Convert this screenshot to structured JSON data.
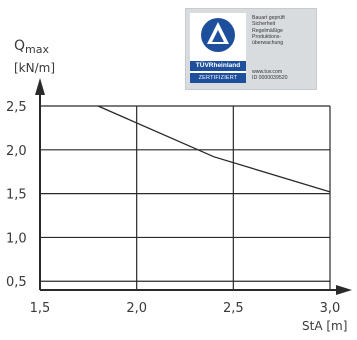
{
  "chart_data": {
    "type": "line",
    "ylabel_main": "Q",
    "ylabel_sub": "max",
    "yunit": "[kN/m]",
    "xlabel": "StA  [m]",
    "xlim": [
      1.5,
      3.0
    ],
    "ylim": [
      0.4,
      2.5
    ],
    "x_ticks": [
      1.5,
      2.0,
      2.5,
      3.0
    ],
    "x_tick_labels": [
      "1,5",
      "2,0",
      "2,5",
      "3,0"
    ],
    "y_ticks": [
      0.5,
      1.0,
      1.5,
      2.0,
      2.5
    ],
    "y_tick_labels": [
      "0,5",
      "1,0",
      "1,5",
      "2,0",
      "2,5"
    ],
    "grid": true,
    "series": [
      {
        "x": [
          1.8,
          2.4,
          3.0
        ],
        "y": [
          2.5,
          1.92,
          1.52
        ]
      }
    ]
  },
  "certificate": {
    "brand": "TÜVRheinland",
    "badge": "ZERTIFIZIERT",
    "lines": [
      "Bauart geprüft",
      "Sicherheit",
      "Regelmäßige",
      "Produktions-",
      "überwachung"
    ],
    "url": "www.tuv.com",
    "id": "ID 0000039520"
  }
}
